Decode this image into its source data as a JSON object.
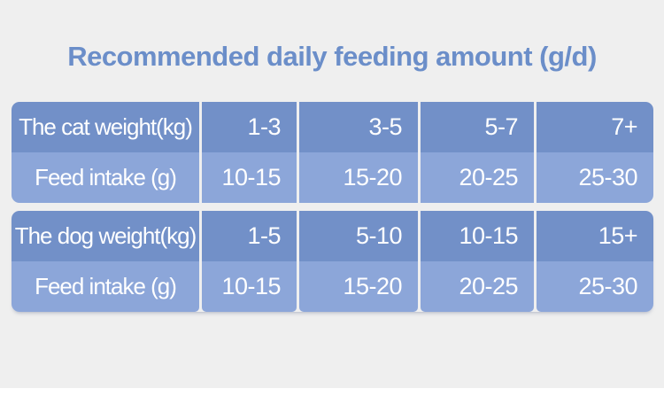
{
  "title": "Recommended daily feeding amount (g/d)",
  "colors": {
    "background": "#efefef",
    "title": "#6b8ec9",
    "row_dark": "#7290c8",
    "row_light": "#8ca6d9",
    "cell_text": "#ffffff"
  },
  "chart_data": [
    {
      "type": "table",
      "rows": [
        [
          "The cat weight(kg)",
          "1-3",
          "3-5",
          "5-7",
          "7+"
        ],
        [
          "Feed intake (g)",
          "10-15",
          "15-20",
          "20-25",
          "25-30"
        ]
      ]
    },
    {
      "type": "table",
      "rows": [
        [
          "The dog weight(kg)",
          "1-5",
          "5-10",
          "10-15",
          "15+"
        ],
        [
          "Feed intake (g)",
          "10-15",
          "15-20",
          "20-25",
          "25-30"
        ]
      ]
    }
  ]
}
